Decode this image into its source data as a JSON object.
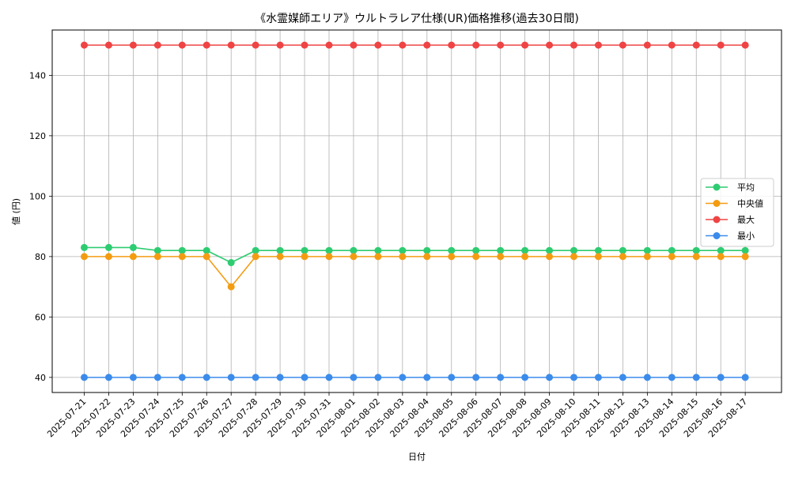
{
  "chart_data": {
    "type": "line",
    "title": "《水霊媒師エリア》ウルトラレア仕様(UR)価格推移(過去30日間)",
    "xlabel": "日付",
    "ylabel": "値 (円)",
    "ylim": [
      35,
      155
    ],
    "yticks": [
      40,
      60,
      80,
      100,
      120,
      140
    ],
    "grid": true,
    "legend_position": "center-right",
    "categories": [
      "2025-07-21",
      "2025-07-22",
      "2025-07-23",
      "2025-07-24",
      "2025-07-25",
      "2025-07-26",
      "2025-07-27",
      "2025-07-28",
      "2025-07-29",
      "2025-07-30",
      "2025-07-31",
      "2025-08-01",
      "2025-08-02",
      "2025-08-03",
      "2025-08-04",
      "2025-08-05",
      "2025-08-06",
      "2025-08-07",
      "2025-08-08",
      "2025-08-09",
      "2025-08-10",
      "2025-08-11",
      "2025-08-12",
      "2025-08-13",
      "2025-08-14",
      "2025-08-15",
      "2025-08-16",
      "2025-08-17"
    ],
    "series": [
      {
        "name": "平均",
        "color": "#2ecc71",
        "values": [
          83,
          83,
          83,
          82,
          82,
          82,
          78,
          82,
          82,
          82,
          82,
          82,
          82,
          82,
          82,
          82,
          82,
          82,
          82,
          82,
          82,
          82,
          82,
          82,
          82,
          82,
          82,
          82
        ]
      },
      {
        "name": "中央値",
        "color": "#f39c12",
        "values": [
          80,
          80,
          80,
          80,
          80,
          80,
          70,
          80,
          80,
          80,
          80,
          80,
          80,
          80,
          80,
          80,
          80,
          80,
          80,
          80,
          80,
          80,
          80,
          80,
          80,
          80,
          80,
          80
        ]
      },
      {
        "name": "最大",
        "color": "#ef4444",
        "values": [
          150,
          150,
          150,
          150,
          150,
          150,
          150,
          150,
          150,
          150,
          150,
          150,
          150,
          150,
          150,
          150,
          150,
          150,
          150,
          150,
          150,
          150,
          150,
          150,
          150,
          150,
          150,
          150
        ]
      },
      {
        "name": "最小",
        "color": "#3b8beb",
        "values": [
          40,
          40,
          40,
          40,
          40,
          40,
          40,
          40,
          40,
          40,
          40,
          40,
          40,
          40,
          40,
          40,
          40,
          40,
          40,
          40,
          40,
          40,
          40,
          40,
          40,
          40,
          40,
          40
        ]
      }
    ]
  }
}
